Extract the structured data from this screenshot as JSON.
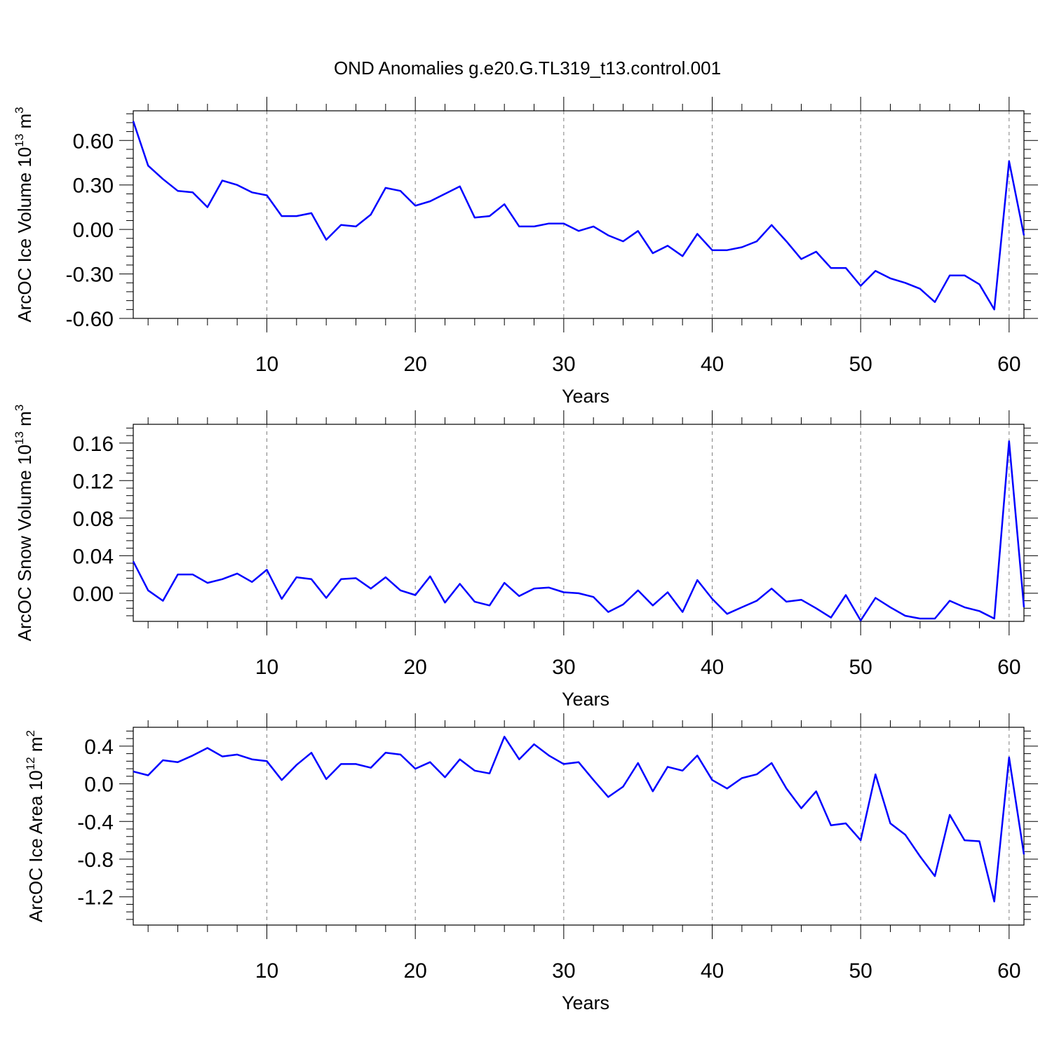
{
  "title": "OND Anomalies g.e20.G.TL319_t13.control.001",
  "chart_data": [
    {
      "type": "line",
      "ylabel_main": "ArcOC Ice Volume 10",
      "ylabel_exp": "13",
      "ylabel_unit": " m",
      "ylabel_unit_exp": "3",
      "xlabel": "Years",
      "xlim": [
        1,
        61
      ],
      "ylim": [
        -0.6,
        0.8
      ],
      "xticks": [
        10,
        20,
        30,
        40,
        50,
        60
      ],
      "xtick_labels": [
        "10",
        "20",
        "30",
        "40",
        "50",
        "60"
      ],
      "yticks": [
        -0.6,
        -0.3,
        0.0,
        0.3,
        0.6
      ],
      "ytick_labels": [
        "-0.60",
        "-0.30",
        "0.00",
        "0.30",
        "0.60"
      ],
      "line_color": "#0000ff",
      "grid": "vertical dashed at major x ticks",
      "x": [
        1,
        2,
        3,
        4,
        5,
        6,
        7,
        8,
        9,
        10,
        11,
        12,
        13,
        14,
        15,
        16,
        17,
        18,
        19,
        20,
        21,
        22,
        23,
        24,
        25,
        26,
        27,
        28,
        29,
        30,
        31,
        32,
        33,
        34,
        35,
        36,
        37,
        38,
        39,
        40,
        41,
        42,
        43,
        44,
        45,
        46,
        47,
        48,
        49,
        50,
        51,
        52,
        53,
        54,
        55,
        56,
        57,
        58,
        59,
        60,
        61
      ],
      "values": [
        0.73,
        0.43,
        0.34,
        0.26,
        0.25,
        0.15,
        0.33,
        0.3,
        0.25,
        0.23,
        0.09,
        0.09,
        0.11,
        -0.07,
        0.03,
        0.02,
        0.1,
        0.28,
        0.26,
        0.16,
        0.19,
        0.24,
        0.29,
        0.08,
        0.09,
        0.17,
        0.02,
        0.02,
        0.04,
        0.04,
        -0.01,
        0.02,
        -0.04,
        -0.08,
        -0.01,
        -0.16,
        -0.11,
        -0.18,
        -0.03,
        -0.14,
        -0.14,
        -0.12,
        -0.08,
        0.03,
        -0.08,
        -0.2,
        -0.15,
        -0.26,
        -0.26,
        -0.38,
        -0.28,
        -0.33,
        -0.36,
        -0.4,
        -0.49,
        -0.31,
        -0.31,
        -0.37,
        -0.54,
        0.46,
        -0.04
      ]
    },
    {
      "type": "line",
      "ylabel_main": "ArcOC Snow Volume 10",
      "ylabel_exp": "13",
      "ylabel_unit": " m",
      "ylabel_unit_exp": "3",
      "xlabel": "Years",
      "xlim": [
        1,
        61
      ],
      "ylim": [
        -0.03,
        0.18
      ],
      "xticks": [
        10,
        20,
        30,
        40,
        50,
        60
      ],
      "xtick_labels": [
        "10",
        "20",
        "30",
        "40",
        "50",
        "60"
      ],
      "yticks": [
        0.0,
        0.04,
        0.08,
        0.12,
        0.16
      ],
      "ytick_labels": [
        "0.00",
        "0.04",
        "0.08",
        "0.12",
        "0.16"
      ],
      "line_color": "#0000ff",
      "grid": "vertical dashed at major x ticks",
      "x": [
        1,
        2,
        3,
        4,
        5,
        6,
        7,
        8,
        9,
        10,
        11,
        12,
        13,
        14,
        15,
        16,
        17,
        18,
        19,
        20,
        21,
        22,
        23,
        24,
        25,
        26,
        27,
        28,
        29,
        30,
        31,
        32,
        33,
        34,
        35,
        36,
        37,
        38,
        39,
        40,
        41,
        42,
        43,
        44,
        45,
        46,
        47,
        48,
        49,
        50,
        51,
        52,
        53,
        54,
        55,
        56,
        57,
        58,
        59,
        60,
        61
      ],
      "values": [
        0.034,
        0.003,
        -0.008,
        0.02,
        0.02,
        0.011,
        0.015,
        0.021,
        0.012,
        0.025,
        -0.006,
        0.017,
        0.015,
        -0.005,
        0.015,
        0.016,
        0.005,
        0.017,
        0.003,
        -0.002,
        0.018,
        -0.01,
        0.01,
        -0.009,
        -0.013,
        0.011,
        -0.003,
        0.005,
        0.006,
        0.001,
        0.0,
        -0.004,
        -0.02,
        -0.012,
        0.003,
        -0.013,
        0.001,
        -0.02,
        0.014,
        -0.006,
        -0.022,
        -0.015,
        -0.008,
        0.005,
        -0.009,
        -0.007,
        -0.016,
        -0.026,
        -0.002,
        -0.029,
        -0.005,
        -0.015,
        -0.024,
        -0.027,
        -0.027,
        -0.008,
        -0.015,
        -0.019,
        -0.027,
        0.162,
        -0.015
      ]
    },
    {
      "type": "line",
      "ylabel_main": "ArcOC Ice Area 10",
      "ylabel_exp": "12",
      "ylabel_unit": " m",
      "ylabel_unit_exp": "2",
      "xlabel": "Years",
      "xlim": [
        1,
        61
      ],
      "ylim": [
        -1.5,
        0.6
      ],
      "xticks": [
        10,
        20,
        30,
        40,
        50,
        60
      ],
      "xtick_labels": [
        "10",
        "20",
        "30",
        "40",
        "50",
        "60"
      ],
      "yticks": [
        -1.2,
        -0.8,
        -0.4,
        0.0,
        0.4
      ],
      "ytick_labels": [
        "-1.2",
        "-0.8",
        "-0.4",
        "0.0",
        "0.4"
      ],
      "line_color": "#0000ff",
      "grid": "vertical dashed at major x ticks",
      "x": [
        1,
        2,
        3,
        4,
        5,
        6,
        7,
        8,
        9,
        10,
        11,
        12,
        13,
        14,
        15,
        16,
        17,
        18,
        19,
        20,
        21,
        22,
        23,
        24,
        25,
        26,
        27,
        28,
        29,
        30,
        31,
        32,
        33,
        34,
        35,
        36,
        37,
        38,
        39,
        40,
        41,
        42,
        43,
        44,
        45,
        46,
        47,
        48,
        49,
        50,
        51,
        52,
        53,
        54,
        55,
        56,
        57,
        58,
        59,
        60,
        61
      ],
      "values": [
        0.13,
        0.09,
        0.25,
        0.23,
        0.3,
        0.38,
        0.29,
        0.31,
        0.26,
        0.24,
        0.04,
        0.2,
        0.33,
        0.05,
        0.21,
        0.21,
        0.17,
        0.33,
        0.31,
        0.16,
        0.23,
        0.07,
        0.26,
        0.14,
        0.11,
        0.5,
        0.26,
        0.42,
        0.3,
        0.21,
        0.23,
        0.04,
        -0.14,
        -0.03,
        0.22,
        -0.08,
        0.18,
        0.14,
        0.3,
        0.04,
        -0.05,
        0.06,
        0.1,
        0.22,
        -0.05,
        -0.26,
        -0.08,
        -0.44,
        -0.42,
        -0.6,
        0.1,
        -0.42,
        -0.54,
        -0.77,
        -0.98,
        -0.33,
        -0.6,
        -0.61,
        -1.25,
        0.28,
        -0.75
      ]
    }
  ]
}
